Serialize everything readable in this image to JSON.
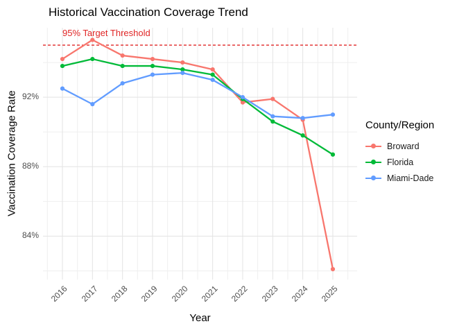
{
  "title": "Historical Vaccination Coverage Trend",
  "chart_data": {
    "type": "line",
    "title": "Historical Vaccination Coverage Trend",
    "xlabel": "Year",
    "ylabel": "Vaccination Coverage Rate",
    "x": [
      2016,
      2017,
      2018,
      2019,
      2020,
      2021,
      2022,
      2023,
      2024,
      2025
    ],
    "series": [
      {
        "name": "Broward",
        "color": "#F8766D",
        "values": [
          94.2,
          95.3,
          94.4,
          94.2,
          94.0,
          93.6,
          91.7,
          91.9,
          90.7,
          82.1
        ]
      },
      {
        "name": "Florida",
        "color": "#00BA38",
        "values": [
          93.8,
          94.2,
          93.8,
          93.8,
          93.6,
          93.3,
          91.9,
          90.6,
          89.8,
          88.7
        ]
      },
      {
        "name": "Miami-Dade",
        "color": "#619CFF",
        "values": [
          92.5,
          91.6,
          92.8,
          93.3,
          93.4,
          93.0,
          92.0,
          90.9,
          90.8,
          91.0
        ]
      }
    ],
    "y_ticks": [
      {
        "value": 84,
        "label": "84%"
      },
      {
        "value": 88,
        "label": "88%"
      },
      {
        "value": 92,
        "label": "92%"
      }
    ],
    "y_minor": [
      82,
      86,
      90,
      94
    ],
    "ylim": [
      81.5,
      96.0
    ],
    "grid": true,
    "legend_title": "County/Region",
    "legend_position": "right",
    "threshold": {
      "value": 95,
      "label": "95% Target Threshold",
      "color": "#E02525",
      "style": "dashed"
    }
  }
}
